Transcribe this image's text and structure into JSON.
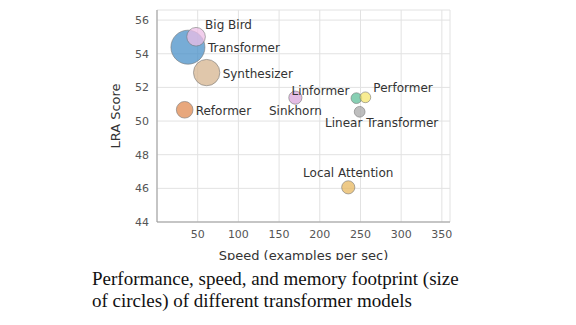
{
  "chart_data": {
    "type": "scatter",
    "x_label": "Speed (examples per sec)",
    "y_label": "LRA Score",
    "caption": [
      "Performance, speed, and memory footprint (size",
      "of circles) of different transformer models"
    ],
    "labels": [
      "Transformer",
      "Big Bird",
      "Synthesizer",
      "Reformer",
      "Sinkhorn",
      "Linformer",
      "Performer",
      "Linear Transformer",
      "Local Attention"
    ],
    "x": [
      38,
      48,
      61,
      34,
      170,
      245,
      256,
      249,
      235
    ],
    "y": [
      54.39,
      55.01,
      52.88,
      50.67,
      51.39,
      51.36,
      51.41,
      50.55,
      46.06
    ],
    "sizes": [
      1.0,
      0.3,
      0.6,
      0.24,
      0.15,
      0.1,
      0.1,
      0.1,
      0.15
    ],
    "colors": [
      "#4a90c8",
      "#ecbde6",
      "#d6b48f",
      "#e08a50",
      "#d9a6d9",
      "#5fbf9a",
      "#f5e66e",
      "#a8a8a8",
      "#e8b860"
    ],
    "xlim": [
      0,
      360
    ],
    "xticks": [
      50,
      100,
      150,
      200,
      250,
      300,
      350
    ],
    "ylim": [
      44,
      56.6
    ],
    "yticks": [
      44,
      46,
      48,
      50,
      52,
      54,
      56
    ],
    "grid": true
  }
}
